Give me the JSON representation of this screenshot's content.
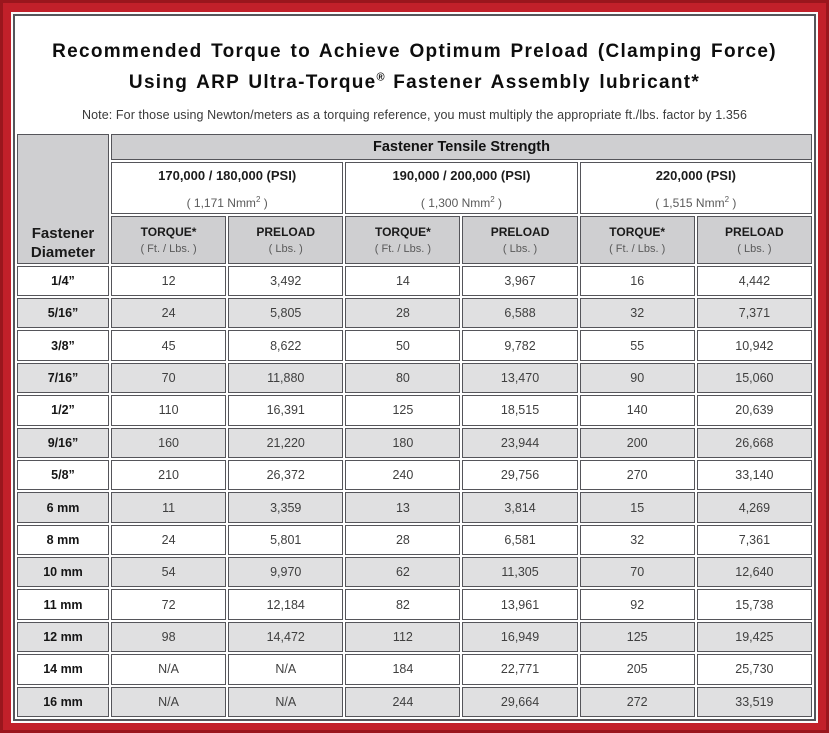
{
  "colors": {
    "frame_red": "#c2202a",
    "frame_red_dark": "#9a161d",
    "border_gray": "#55555a",
    "header_gray": "#cfcfd1",
    "stripe_gray": "#e0e0e1"
  },
  "title": {
    "line1": "Recommended Torque to Achieve Optimum Preload (Clamping Force)",
    "line2_before_reg": "Using ARP Ultra-Torque",
    "registered_mark": "®",
    "line2_after_reg": " Fastener Assembly lubricant*",
    "note": "Note: For those using Newton/meters as a torquing reference, you must multiply the appropriate ft./lbs. factor by 1.356"
  },
  "table": {
    "corner_line1": "Fastener",
    "corner_line2": "Diameter",
    "main_header": "Fastener Tensile Strength",
    "groups": [
      {
        "psi": "170,000 / 180,000 (PSI)",
        "nmm_before_sup": "( 1,171 Nmm",
        "nmm_sup": "2",
        "nmm_after_sup": " )"
      },
      {
        "psi": "190,000 / 200,000 (PSI)",
        "nmm_before_sup": "( 1,300 Nmm",
        "nmm_sup": "2",
        "nmm_after_sup": " )"
      },
      {
        "psi": "220,000 (PSI)",
        "nmm_before_sup": "( 1,515 Nmm",
        "nmm_sup": "2",
        "nmm_after_sup": " )"
      }
    ],
    "subcolumns": {
      "torque_label": "TORQUE*",
      "torque_unit": "( Ft. / Lbs. )",
      "preload_label": "PRELOAD",
      "preload_unit": "( Lbs. )"
    },
    "rows": [
      {
        "diameter": "1/4”",
        "values": [
          "12",
          "3,492",
          "14",
          "3,967",
          "16",
          "4,442"
        ]
      },
      {
        "diameter": "5/16”",
        "values": [
          "24",
          "5,805",
          "28",
          "6,588",
          "32",
          "7,371"
        ]
      },
      {
        "diameter": "3/8”",
        "values": [
          "45",
          "8,622",
          "50",
          "9,782",
          "55",
          "10,942"
        ]
      },
      {
        "diameter": "7/16”",
        "values": [
          "70",
          "11,880",
          "80",
          "13,470",
          "90",
          "15,060"
        ]
      },
      {
        "diameter": "1/2”",
        "values": [
          "110",
          "16,391",
          "125",
          "18,515",
          "140",
          "20,639"
        ]
      },
      {
        "diameter": "9/16”",
        "values": [
          "160",
          "21,220",
          "180",
          "23,944",
          "200",
          "26,668"
        ]
      },
      {
        "diameter": "5/8”",
        "values": [
          "210",
          "26,372",
          "240",
          "29,756",
          "270",
          "33,140"
        ]
      },
      {
        "diameter": "6 mm",
        "values": [
          "11",
          "3,359",
          "13",
          "3,814",
          "15",
          "4,269"
        ]
      },
      {
        "diameter": "8 mm",
        "values": [
          "24",
          "5,801",
          "28",
          "6,581",
          "32",
          "7,361"
        ]
      },
      {
        "diameter": "10 mm",
        "values": [
          "54",
          "9,970",
          "62",
          "11,305",
          "70",
          "12,640"
        ]
      },
      {
        "diameter": "11 mm",
        "values": [
          "72",
          "12,184",
          "82",
          "13,961",
          "92",
          "15,738"
        ]
      },
      {
        "diameter": "12 mm",
        "values": [
          "98",
          "14,472",
          "112",
          "16,949",
          "125",
          "19,425"
        ]
      },
      {
        "diameter": "14 mm",
        "values": [
          "N/A",
          "N/A",
          "184",
          "22,771",
          "205",
          "25,730"
        ]
      },
      {
        "diameter": "16 mm",
        "values": [
          "N/A",
          "N/A",
          "244",
          "29,664",
          "272",
          "33,519"
        ]
      }
    ]
  }
}
